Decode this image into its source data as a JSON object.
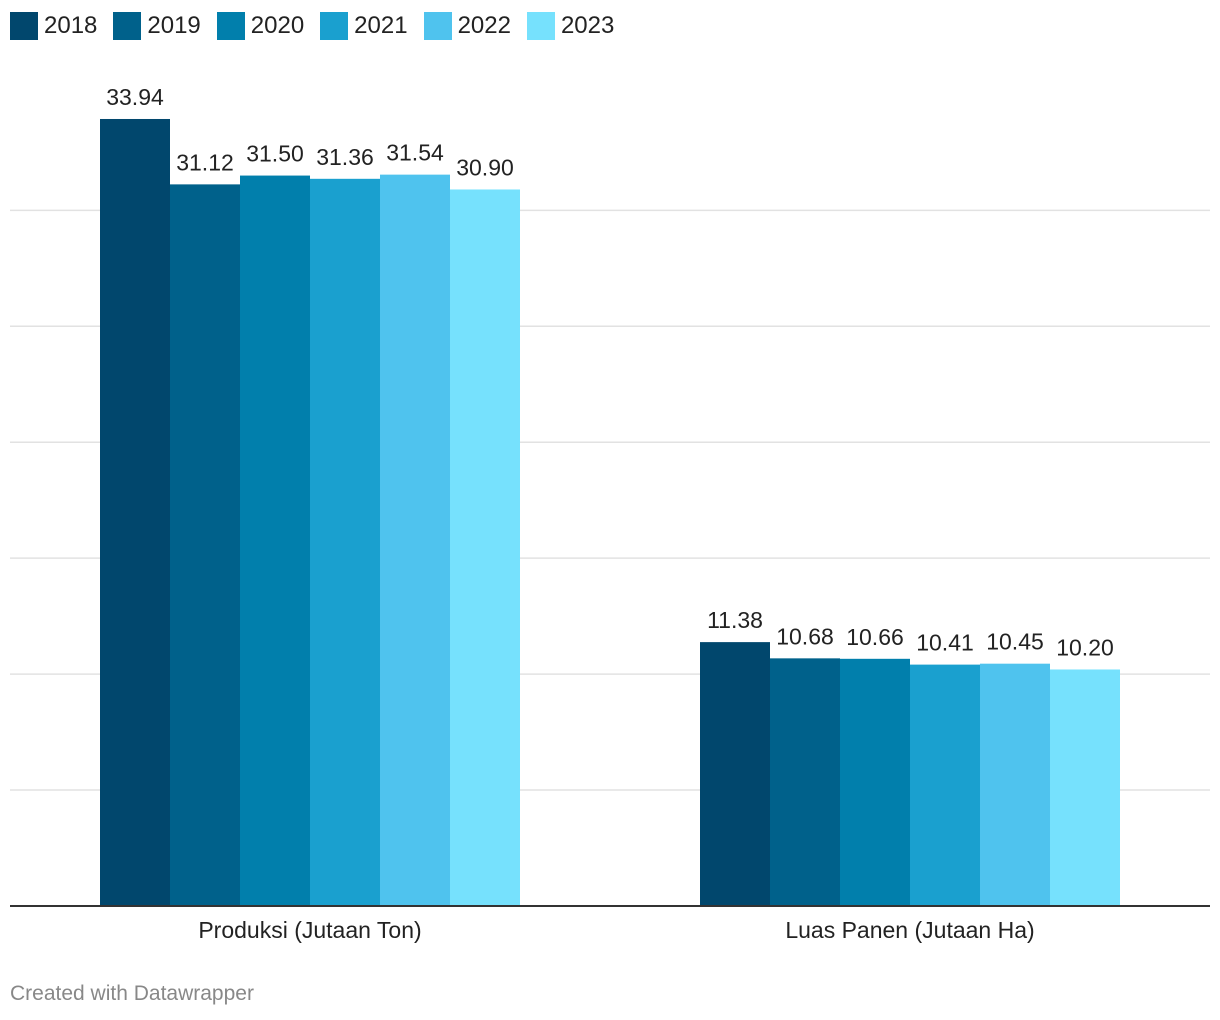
{
  "chart_data": {
    "type": "bar",
    "categories": [
      "Produksi (Jutaan Ton)",
      "Luas Panen (Jutaan Ha)"
    ],
    "series": [
      {
        "name": "2018",
        "color": "#01476d",
        "values": [
          33.94,
          11.38
        ]
      },
      {
        "name": "2019",
        "color": "#00618b",
        "values": [
          31.12,
          10.68
        ]
      },
      {
        "name": "2020",
        "color": "#017fac",
        "values": [
          31.5,
          10.66
        ]
      },
      {
        "name": "2021",
        "color": "#1aa0cf",
        "values": [
          31.36,
          10.41
        ]
      },
      {
        "name": "2022",
        "color": "#4fc3ee",
        "values": [
          31.54,
          10.45
        ]
      },
      {
        "name": "2023",
        "color": "#76e1fd",
        "values": [
          30.9,
          10.2
        ]
      }
    ],
    "value_labels": [
      [
        "33.94",
        "11.38"
      ],
      [
        "31.12",
        "10.68"
      ],
      [
        "31.50",
        "10.66"
      ],
      [
        "31.36",
        "10.41"
      ],
      [
        "31.54",
        "10.45"
      ],
      [
        "30.90",
        "10.20"
      ]
    ],
    "ylim": [
      0,
      34.5
    ],
    "gridline_step": 5,
    "grid": true,
    "legend_placement": "top-left",
    "title": "",
    "xlabel": "",
    "ylabel": ""
  },
  "footer": {
    "credit": "Created with Datawrapper"
  }
}
